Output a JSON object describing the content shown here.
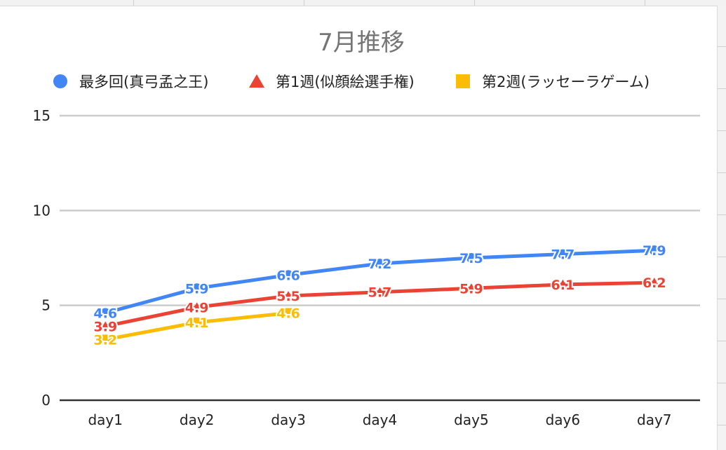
{
  "chart_data": {
    "type": "line",
    "title": "7月推移",
    "xlabel": "",
    "ylabel": "",
    "categories": [
      "day1",
      "day2",
      "day3",
      "day4",
      "day5",
      "day6",
      "day7"
    ],
    "ylim": [
      0,
      15
    ],
    "yticks": [
      0,
      5,
      10,
      15
    ],
    "grid": true,
    "legend_position": "top",
    "series": [
      {
        "name": "最多回(真弓孟之王)",
        "color": "#4285f4",
        "marker": "circle",
        "values": [
          4.6,
          5.9,
          6.6,
          7.2,
          7.5,
          7.7,
          7.9
        ]
      },
      {
        "name": "第1週(似顔絵選手権)",
        "color": "#ea4335",
        "marker": "triangle",
        "values": [
          3.9,
          4.9,
          5.5,
          5.7,
          5.9,
          6.1,
          6.2
        ]
      },
      {
        "name": "第2週(ラッセーラゲーム)",
        "color": "#fbbc04",
        "marker": "square",
        "values": [
          3.2,
          4.1,
          4.6,
          null,
          null,
          null,
          null
        ]
      }
    ]
  }
}
